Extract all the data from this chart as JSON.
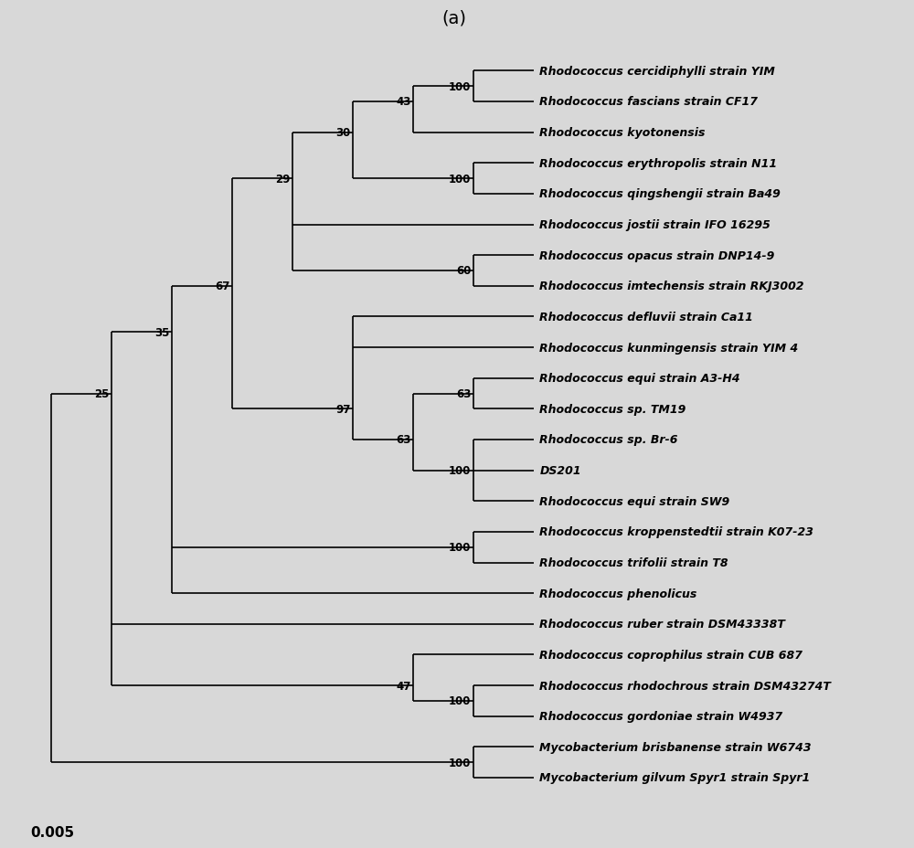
{
  "background_color": "#d8d8d8",
  "title": "(a)",
  "scale_bar_label": "0.005",
  "taxa": [
    "Rhodococcus cercidiphylli strain YIM",
    "Rhodococcus fascians strain CF17",
    "Rhodococcus kyotonensis",
    "Rhodococcus erythropolis strain N11",
    "Rhodococcus qingshengii strain Ba49",
    "Rhodococcus jostii strain IFO 16295",
    "Rhodococcus opacus strain DNP14-9",
    "Rhodococcus imtechensis strain RKJ3002",
    "Rhodococcus defluvii strain Ca11",
    "Rhodococcus kunmingensis strain YIM 4",
    "Rhodococcus equi strain A3-H4",
    "Rhodococcus sp. TM19",
    "Rhodococcus sp. Br-6",
    "DS201",
    "Rhodococcus equi strain SW9",
    "Rhodococcus kroppenstedtii strain K07-23",
    "Rhodococcus trifolii strain T8",
    "Rhodococcus phenolicus",
    "Rhodococcus ruber strain DSM43338T",
    "Rhodococcus coprophilus strain CUB 687",
    "Rhodococcus rhodochrous strain DSM43274T",
    "Rhodococcus gordoniae strain W4937",
    "Mycobacterium brisbanense strain W6743",
    "Mycobacterium gilvum Spyr1 strain Spyr1"
  ]
}
